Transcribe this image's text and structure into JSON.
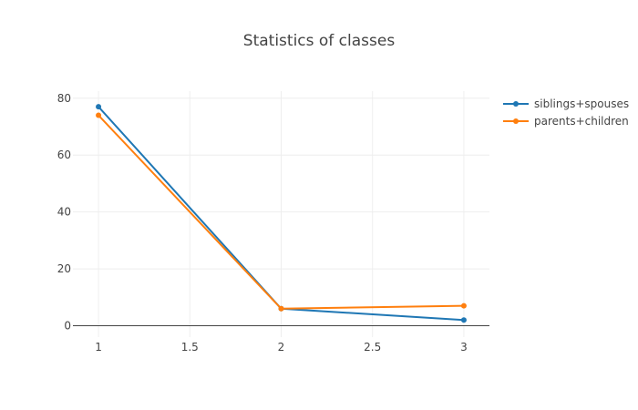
{
  "chart_data": {
    "type": "line",
    "title": "Statistics of classes",
    "xlabel": "",
    "ylabel": "",
    "x": [
      1,
      2,
      3
    ],
    "xlim": [
      0.86,
      3.14
    ],
    "ylim": [
      -4,
      82.5
    ],
    "xticks": [
      1,
      1.5,
      2,
      2.5,
      3
    ],
    "xtick_labels": [
      "1",
      "1.5",
      "2",
      "2.5",
      "3"
    ],
    "yticks": [
      0,
      20,
      40,
      60,
      80
    ],
    "ytick_labels": [
      "0",
      "20",
      "40",
      "60",
      "80"
    ],
    "grid": true,
    "legend_position": "top-right",
    "series": [
      {
        "name": "siblings+spouses",
        "color": "#1f77b4",
        "values": [
          77,
          6,
          2
        ]
      },
      {
        "name": "parents+children",
        "color": "#ff7f0e",
        "values": [
          74,
          6,
          7
        ]
      }
    ]
  }
}
